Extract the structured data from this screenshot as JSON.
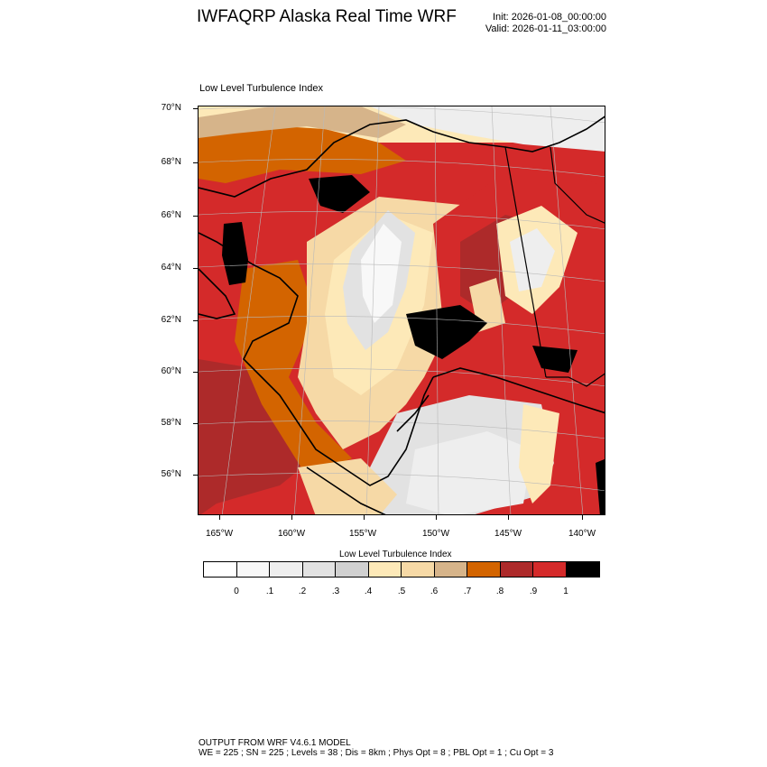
{
  "header": {
    "title": "IWFAQRP Alaska Real Time WRF",
    "init": "Init: 2026-01-08_00:00:00",
    "valid": "Valid: 2026-01-11_03:00:00"
  },
  "plot": {
    "field_label": "Low Level Turbulence Index",
    "lat_labels": [
      "70°N",
      "68°N",
      "66°N",
      "64°N",
      "62°N",
      "60°N",
      "58°N",
      "56°N"
    ],
    "lon_labels": [
      "165°W",
      "160°W",
      "155°W",
      "150°W",
      "145°W",
      "140°W"
    ]
  },
  "colorbar": {
    "title": "Low Level Turbulence Index",
    "labels": [
      "0",
      ".1",
      ".2",
      ".3",
      ".4",
      ".5",
      ".6",
      ".7",
      ".8",
      ".9",
      "1"
    ],
    "colors": [
      "#ffffff",
      "#f8f8f8",
      "#eeeeee",
      "#e2e2e2",
      "#d0d0d0",
      "#fde9b8",
      "#f6d9a6",
      "#d6b48a",
      "#d36400",
      "#ad2a2a",
      "#d42a2a",
      "#000000"
    ]
  },
  "footer": {
    "line1": "OUTPUT FROM WRF V4.6.1 MODEL",
    "line2": "WE = 225 ; SN = 225 ; Levels = 38 ; Dis = 8km ; Phys Opt = 8 ; PBL Opt = 1 ; Cu Opt = 3"
  }
}
